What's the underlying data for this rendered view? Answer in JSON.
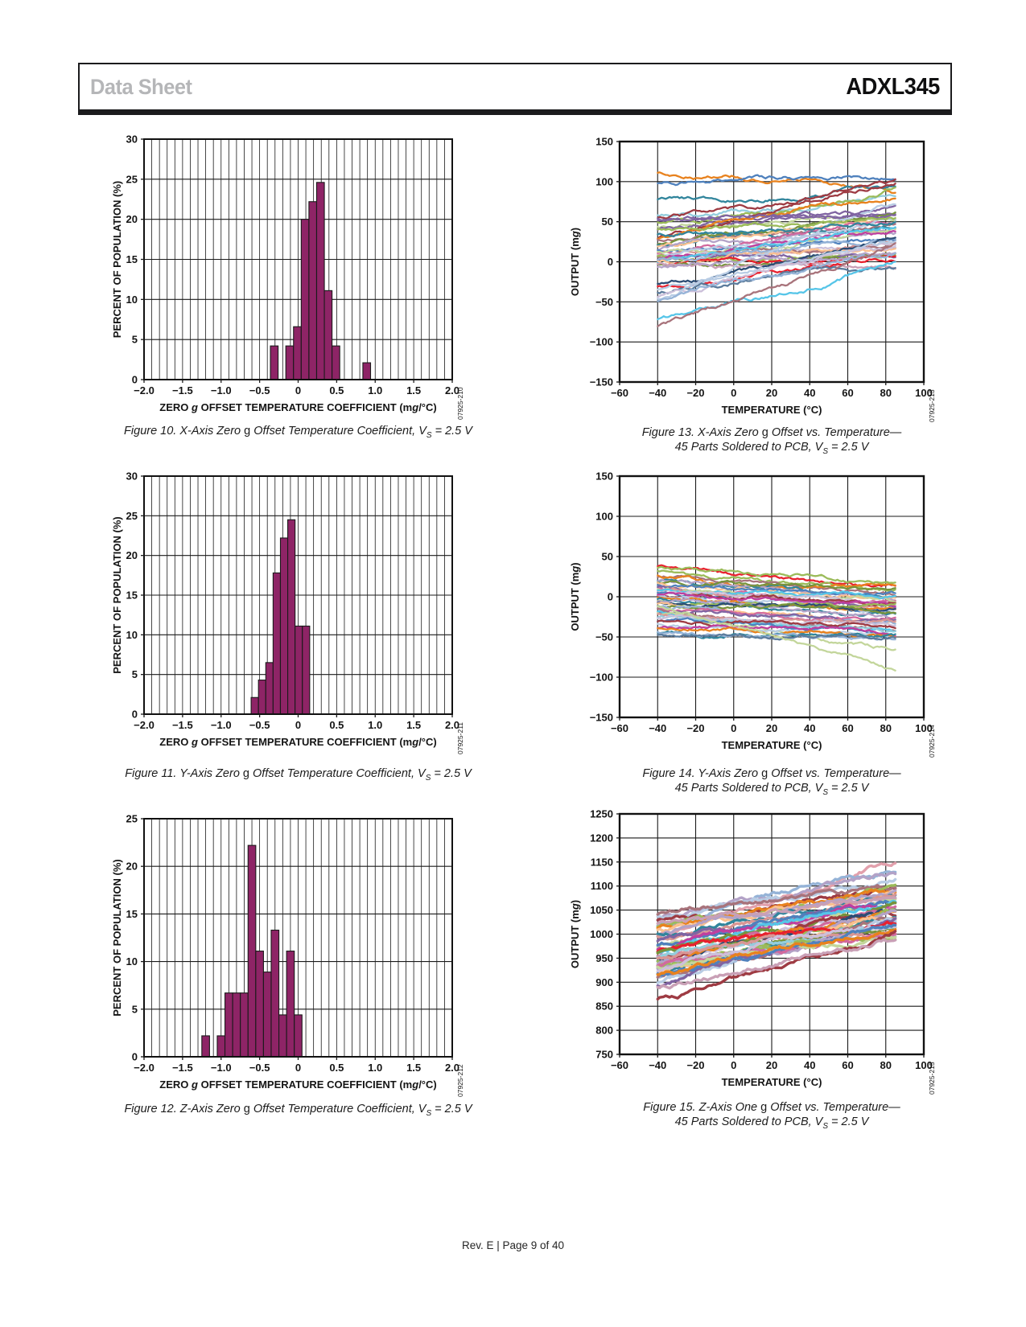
{
  "header": {
    "doc_type": "Data Sheet",
    "part_number": "ADXL345"
  },
  "footer": {
    "text": "Rev. E | Page 9 of 40"
  },
  "colors": {
    "bar_fill": "#8E2466",
    "grid": "#1a1a1a",
    "border": "#111111",
    "watermark_text": "#333333",
    "palette": [
      "#E8821E",
      "#4F81BD",
      "#9E3B43",
      "#31859C",
      "#9BBB59",
      "#8064A2",
      "#C3D69B",
      "#2C4D75",
      "#E8212E",
      "#56C5E8",
      "#B3A2C7",
      "#D99694",
      "#B8CCE4",
      "#CCC0DA",
      "#FAC090",
      "#BF3F9F",
      "#A8737B",
      "#93CDDD",
      "#D2699E",
      "#77933C",
      "#95B3D7",
      "#C9A0B6",
      "#E2A0AC",
      "#5B7B9C"
    ]
  },
  "chart_data": [
    {
      "id": "figure-10",
      "type": "histogram",
      "caption_lines": [
        "Figure 10. X-Axis Zero *g* Offset Temperature Coefficient, V~S~ = 2.5 V"
      ],
      "watermark": "07925-210",
      "xlabel": "ZERO *g* OFFSET TEMPERATURE COEFFICIENT (m*g*/°C)",
      "ylabel": "PERCENT OF POPULATION (%)",
      "xlim": [
        -2,
        2
      ],
      "ylim": [
        0,
        30
      ],
      "xticks": [
        -2,
        -1.5,
        -1,
        -0.5,
        0,
        0.5,
        1,
        1.5,
        2
      ],
      "yticks": [
        0,
        5,
        10,
        15,
        20,
        25,
        30
      ],
      "minor_x_step": 0.1,
      "bins": [
        [
          -0.36,
          -0.26,
          4.2
        ],
        [
          -0.16,
          -0.06,
          4.2
        ],
        [
          -0.06,
          0.04,
          6.6
        ],
        [
          0.04,
          0.14,
          20.0
        ],
        [
          0.14,
          0.24,
          22.2
        ],
        [
          0.24,
          0.34,
          24.6
        ],
        [
          0.34,
          0.44,
          11.1
        ],
        [
          0.44,
          0.54,
          4.2
        ],
        [
          0.84,
          0.94,
          2.1
        ]
      ]
    },
    {
      "id": "figure-11",
      "type": "histogram",
      "caption_lines": [
        "Figure 11. Y-Axis Zero *g* Offset Temperature Coefficient, V~S~ = 2.5 V"
      ],
      "watermark": "07925-211",
      "xlabel": "ZERO *g* OFFSET TEMPERATURE COEFFICIENT (m*g*/°C)",
      "ylabel": "PERCENT OF POPULATION (%)",
      "xlim": [
        -2,
        2
      ],
      "ylim": [
        0,
        30
      ],
      "xticks": [
        -2,
        -1.5,
        -1,
        -0.5,
        0,
        0.5,
        1,
        1.5,
        2
      ],
      "yticks": [
        0,
        5,
        10,
        15,
        20,
        25,
        30
      ],
      "minor_x_step": 0.1,
      "bins": [
        [
          -0.61,
          -0.515,
          2.1
        ],
        [
          -0.515,
          -0.42,
          4.3
        ],
        [
          -0.42,
          -0.325,
          6.5
        ],
        [
          -0.325,
          -0.23,
          17.8
        ],
        [
          -0.23,
          -0.135,
          22.2
        ],
        [
          -0.135,
          -0.04,
          24.5
        ],
        [
          -0.04,
          0.055,
          11.1
        ],
        [
          0.055,
          0.15,
          11.1
        ]
      ]
    },
    {
      "id": "figure-12",
      "type": "histogram",
      "caption_lines": [
        "Figure 12. Z-Axis Zero *g* Offset Temperature Coefficient, V~S~ = 2.5 V"
      ],
      "watermark": "07925-212",
      "xlabel": "ZERO *g* OFFSET TEMPERATURE COEFFICIENT (m*g*/°C)",
      "ylabel": "PERCENT OF POPULATION (%)",
      "xlim": [
        -2,
        2
      ],
      "ylim": [
        0,
        25
      ],
      "xticks": [
        -2,
        -1.5,
        -1,
        -0.5,
        0,
        0.5,
        1,
        1.5,
        2
      ],
      "yticks": [
        0,
        5,
        10,
        15,
        20,
        25
      ],
      "minor_x_step": 0.1,
      "bins": [
        [
          -1.25,
          -1.15,
          2.2
        ],
        [
          -1.05,
          -0.95,
          2.2
        ],
        [
          -0.95,
          -0.85,
          6.7
        ],
        [
          -0.85,
          -0.75,
          6.7
        ],
        [
          -0.75,
          -0.65,
          6.7
        ],
        [
          -0.65,
          -0.55,
          22.2
        ],
        [
          -0.55,
          -0.45,
          11.1
        ],
        [
          -0.45,
          -0.35,
          8.9
        ],
        [
          -0.35,
          -0.25,
          13.3
        ],
        [
          -0.25,
          -0.15,
          4.4
        ],
        [
          -0.15,
          -0.05,
          11.1
        ],
        [
          -0.05,
          0.05,
          4.4
        ]
      ]
    },
    {
      "id": "figure-13",
      "type": "line",
      "caption_lines": [
        "Figure 13. X-Axis Zero *g* Offset vs. Temperature—",
        "45 Parts Soldered to PCB, V~S~ = 2.5 V"
      ],
      "watermark": "07925-213",
      "xlabel": "TEMPERATURE (°C)",
      "ylabel": "OUTPUT (m*g*)",
      "xlim": [
        -60,
        100
      ],
      "ylim": [
        -150,
        150
      ],
      "xticks": [
        -60,
        -40,
        -20,
        0,
        20,
        40,
        60,
        80,
        100
      ],
      "yticks": [
        -150,
        -100,
        -50,
        0,
        50,
        100,
        150
      ],
      "x_data_range": [
        -40,
        85
      ],
      "series": [
        [
          108,
          88,
          0
        ],
        [
          99,
          107,
          1
        ],
        [
          77,
          93,
          3
        ],
        [
          60,
          83,
          17
        ],
        [
          53,
          102,
          2
        ],
        [
          52,
          57,
          5
        ],
        [
          48,
          90,
          4
        ],
        [
          47,
          52,
          6
        ],
        [
          37,
          62,
          5
        ],
        [
          30,
          100,
          2
        ],
        [
          28,
          80,
          0
        ],
        [
          25,
          45,
          16
        ],
        [
          22,
          60,
          19
        ],
        [
          20,
          40,
          3
        ],
        [
          18,
          50,
          14
        ],
        [
          15,
          35,
          10
        ],
        [
          14,
          30,
          1
        ],
        [
          12,
          55,
          18
        ],
        [
          10,
          25,
          11
        ],
        [
          9,
          40,
          6
        ],
        [
          8,
          20,
          13
        ],
        [
          7,
          50,
          12
        ],
        [
          6,
          15,
          16
        ],
        [
          5,
          10,
          4
        ],
        [
          4,
          38,
          15
        ],
        [
          3,
          8,
          5
        ],
        [
          2,
          45,
          9
        ],
        [
          1,
          12,
          14
        ],
        [
          0,
          5,
          8
        ],
        [
          0,
          30,
          20
        ],
        [
          -2,
          8,
          19
        ],
        [
          -3,
          -5,
          21
        ],
        [
          -5,
          10,
          10
        ],
        [
          -28,
          32,
          7
        ],
        [
          -32,
          5,
          8
        ],
        [
          -35,
          25,
          12
        ],
        [
          -38,
          -8,
          23
        ],
        [
          -45,
          20,
          13
        ],
        [
          -47,
          75,
          12
        ],
        [
          -48,
          10,
          20
        ],
        [
          -72,
          0,
          9
        ],
        [
          -80,
          22,
          16
        ],
        [
          55,
          60,
          5
        ],
        [
          40,
          55,
          4
        ],
        [
          35,
          48,
          3
        ]
      ]
    },
    {
      "id": "figure-14",
      "type": "line",
      "caption_lines": [
        "Figure 14. Y-Axis Zero *g* Offset vs. Temperature—",
        "45 Parts Soldered to PCB, V~S~ = 2.5 V"
      ],
      "watermark": "07925-214",
      "xlabel": "TEMPERATURE (°C)",
      "ylabel": "OUTPUT (m*g*)",
      "xlim": [
        -60,
        100
      ],
      "ylim": [
        -150,
        150
      ],
      "xticks": [
        -60,
        -40,
        -20,
        0,
        20,
        40,
        60,
        80,
        100
      ],
      "yticks": [
        -150,
        -100,
        -50,
        0,
        50,
        100,
        150
      ],
      "x_data_range": [
        -40,
        85
      ],
      "series": [
        [
          38,
          13,
          8
        ],
        [
          30,
          10,
          4
        ],
        [
          27,
          5,
          16
        ],
        [
          25,
          12,
          0
        ],
        [
          22,
          0,
          3
        ],
        [
          20,
          -5,
          10
        ],
        [
          18,
          8,
          19
        ],
        [
          16,
          -2,
          14
        ],
        [
          15,
          3,
          1
        ],
        [
          13,
          -8,
          18
        ],
        [
          12,
          -12,
          5
        ],
        [
          10,
          -5,
          6
        ],
        [
          9,
          -15,
          11
        ],
        [
          8,
          2,
          9
        ],
        [
          7,
          -10,
          13
        ],
        [
          5,
          -18,
          1
        ],
        [
          4,
          -8,
          2
        ],
        [
          3,
          -20,
          12
        ],
        [
          2,
          -12,
          15
        ],
        [
          0,
          -15,
          0
        ],
        [
          -2,
          -22,
          3
        ],
        [
          -4,
          -10,
          4
        ],
        [
          -5,
          -25,
          10
        ],
        [
          -7,
          -18,
          7
        ],
        [
          -8,
          -30,
          14
        ],
        [
          -10,
          -20,
          19
        ],
        [
          -12,
          -35,
          20
        ],
        [
          -14,
          -25,
          18
        ],
        [
          -15,
          -40,
          16
        ],
        [
          -17,
          -28,
          5
        ],
        [
          -18,
          -45,
          9
        ],
        [
          -20,
          -65,
          6
        ],
        [
          -22,
          -32,
          11
        ],
        [
          -25,
          -42,
          17
        ],
        [
          -27,
          -35,
          13
        ],
        [
          -30,
          -48,
          1
        ],
        [
          -32,
          -38,
          2
        ],
        [
          -35,
          -50,
          12
        ],
        [
          -38,
          -45,
          15
        ],
        [
          -40,
          -52,
          0
        ],
        [
          -43,
          -48,
          3
        ],
        [
          -45,
          -55,
          20
        ],
        [
          -48,
          -50,
          23
        ],
        [
          -10,
          -90,
          6
        ],
        [
          35,
          15,
          4
        ]
      ]
    },
    {
      "id": "figure-15",
      "type": "line",
      "caption_lines": [
        "Figure 15. Z-Axis One *g* Offset vs. Temperature—",
        "45 Parts Soldered to PCB, V~S~ = 2.5 V"
      ],
      "watermark": "07925-215",
      "xlabel": "TEMPERATURE (°C)",
      "ylabel": "OUTPUT (m*g*)",
      "xlim": [
        -60,
        100
      ],
      "ylim": [
        750,
        1250
      ],
      "xticks": [
        -60,
        -40,
        -20,
        0,
        20,
        40,
        60,
        80,
        100
      ],
      "yticks": [
        750,
        800,
        850,
        900,
        950,
        1000,
        1050,
        1100,
        1150,
        1200,
        1250
      ],
      "x_data_range": [
        -40,
        85
      ],
      "series": [
        [
          1000,
          1152,
          22
        ],
        [
          1020,
          1135,
          20
        ],
        [
          1030,
          1125,
          10
        ],
        [
          1035,
          1110,
          12
        ],
        [
          1025,
          1100,
          2
        ],
        [
          1040,
          1095,
          16
        ],
        [
          1015,
          1090,
          4
        ],
        [
          1010,
          1092,
          0
        ],
        [
          1005,
          1088,
          14
        ],
        [
          1000,
          1085,
          10
        ],
        [
          995,
          1080,
          3
        ],
        [
          990,
          1078,
          11
        ],
        [
          985,
          1075,
          5
        ],
        [
          980,
          1072,
          6
        ],
        [
          1018,
          1082,
          21
        ],
        [
          975,
          1070,
          1
        ],
        [
          970,
          1068,
          15
        ],
        [
          965,
          1065,
          9
        ],
        [
          960,
          1060,
          19
        ],
        [
          955,
          1058,
          18
        ],
        [
          950,
          1055,
          13
        ],
        [
          945,
          1052,
          2
        ],
        [
          940,
          1050,
          7
        ],
        [
          935,
          1048,
          0
        ],
        [
          930,
          1045,
          4
        ],
        [
          925,
          1042,
          10
        ],
        [
          920,
          1040,
          3
        ],
        [
          915,
          1038,
          14
        ],
        [
          910,
          1035,
          20
        ],
        [
          905,
          1032,
          16
        ],
        [
          900,
          1030,
          12
        ],
        [
          895,
          1028,
          5
        ],
        [
          968,
          1020,
          8
        ],
        [
          962,
          1015,
          19
        ],
        [
          958,
          1010,
          17
        ],
        [
          952,
          1005,
          11
        ],
        [
          948,
          1000,
          4
        ],
        [
          942,
          998,
          10
        ],
        [
          938,
          995,
          18
        ],
        [
          932,
          992,
          6
        ],
        [
          928,
          1025,
          13
        ],
        [
          922,
          1018,
          1
        ],
        [
          918,
          1012,
          0
        ],
        [
          868,
          1000,
          2
        ],
        [
          890,
          988,
          21
        ]
      ]
    }
  ]
}
